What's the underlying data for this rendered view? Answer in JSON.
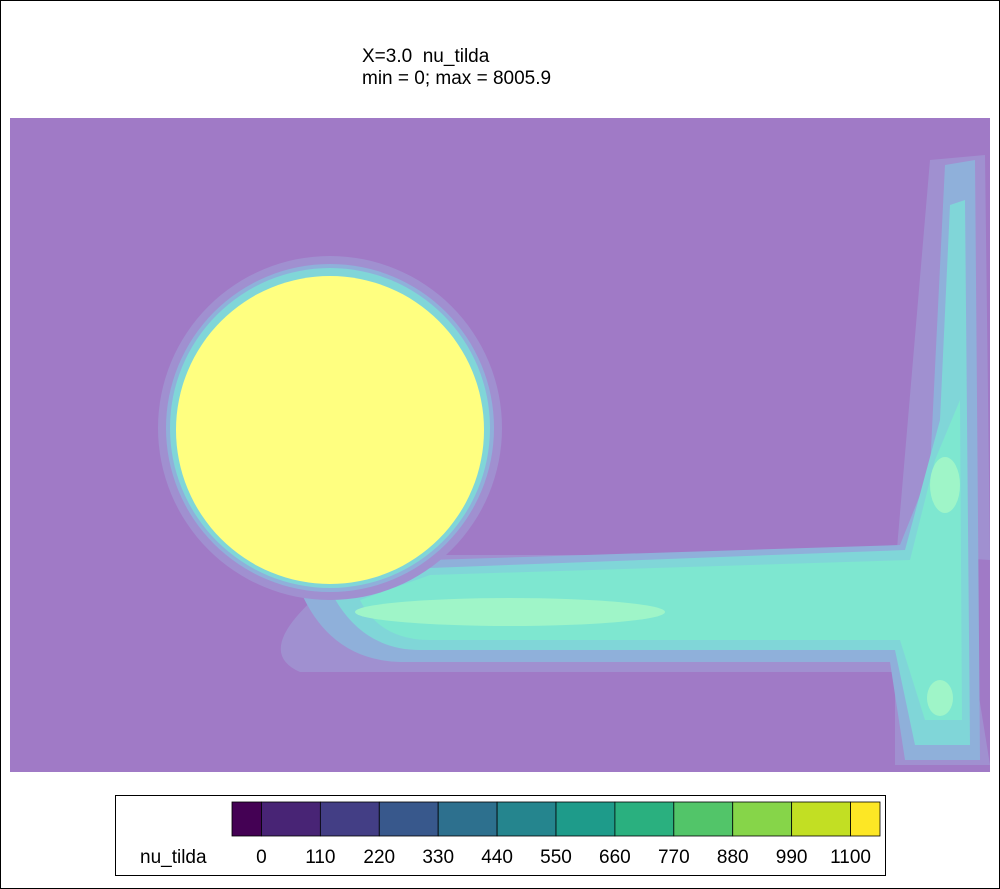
{
  "chart_data": {
    "type": "contour",
    "title_lines": [
      "X=3.0  nu_tilda",
      "min = 0; max = 8005.9"
    ],
    "colorbar": {
      "label": "nu_tilda",
      "lim": [
        -55,
        1155
      ],
      "ticks": [
        0,
        110,
        220,
        330,
        440,
        550,
        660,
        770,
        880,
        990,
        1100
      ],
      "colors": [
        "#440154",
        "#482475",
        "#433e85",
        "#38588c",
        "#2d708e",
        "#25858e",
        "#1e9b8a",
        "#2ab07f",
        "#52c569",
        "#86d549",
        "#c2df23",
        "#fde725"
      ]
    }
  }
}
